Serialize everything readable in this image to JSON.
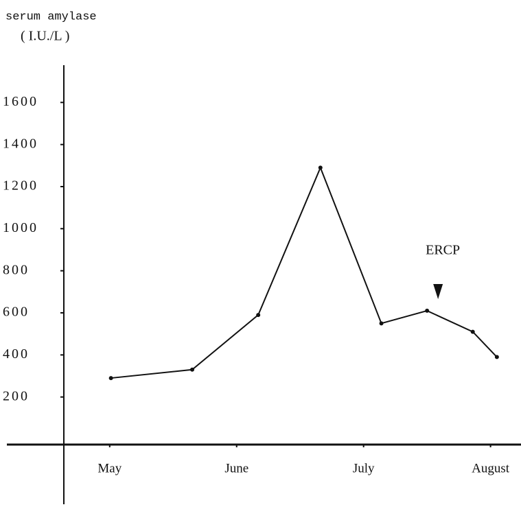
{
  "chart_data": {
    "type": "line",
    "y_label": [
      "serum amylase",
      "( I.U./L )"
    ],
    "x": [
      0.01,
      0.65,
      1.17,
      1.66,
      2.14,
      2.5,
      2.86,
      3.05
    ],
    "series": [
      {
        "name": "serum amylase",
        "color": "#111111",
        "values": [
          290,
          330,
          590,
          1290,
          550,
          610,
          510,
          390
        ]
      }
    ],
    "xlim": [
      -0.81,
      3.24
    ],
    "xticks": [
      {
        "value": 0,
        "label": "May"
      },
      {
        "value": 1,
        "label": "June"
      },
      {
        "value": 2,
        "label": "July"
      },
      {
        "value": 3,
        "label": "August"
      }
    ],
    "ylim": [
      0,
      1800
    ],
    "yticks": [
      200,
      400,
      600,
      800,
      1000,
      1200,
      1400,
      1600
    ],
    "annotations": [
      {
        "text": "ERCP",
        "x": 2.5
      }
    ],
    "grid": false
  }
}
